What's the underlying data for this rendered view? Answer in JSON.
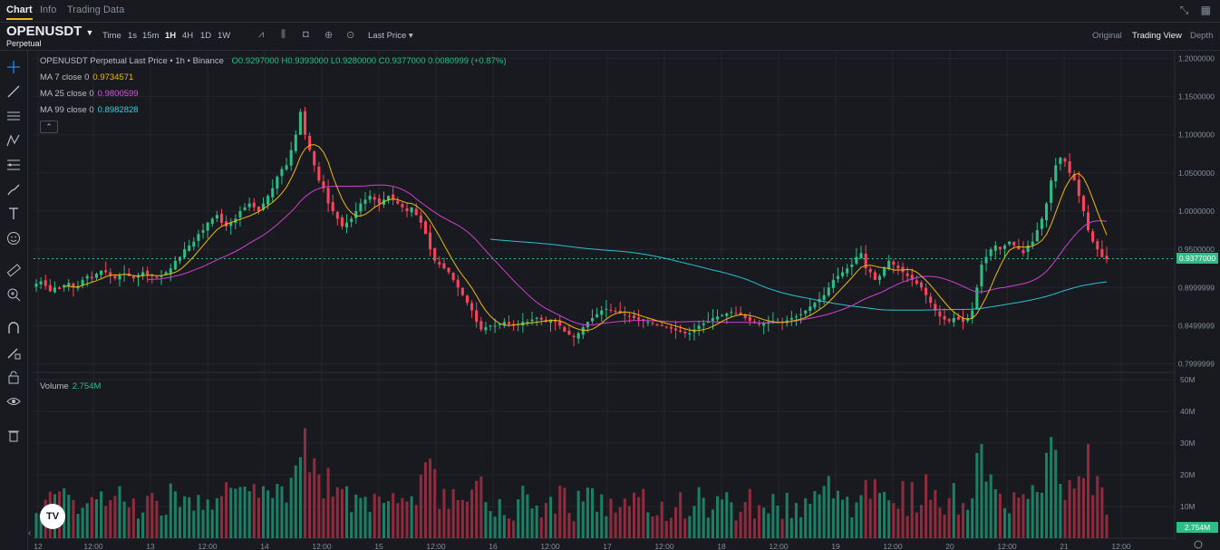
{
  "tabs": [
    {
      "label": "Chart",
      "active": true
    },
    {
      "label": "Info",
      "active": false
    },
    {
      "label": "Trading Data",
      "active": false
    }
  ],
  "symbol": {
    "name": "OPENUSDT",
    "sub": "Perpetual"
  },
  "intervals": [
    {
      "label": "Time",
      "active": false
    },
    {
      "label": "1s",
      "active": false
    },
    {
      "label": "15m",
      "active": false
    },
    {
      "label": "1H",
      "active": true
    },
    {
      "label": "4H",
      "active": false
    },
    {
      "label": "1D",
      "active": false
    },
    {
      "label": "1W",
      "active": false
    }
  ],
  "price_type": "Last Price",
  "views": [
    {
      "label": "Original",
      "active": false
    },
    {
      "label": "Trading View",
      "active": true
    },
    {
      "label": "Depth",
      "active": false
    }
  ],
  "legend": {
    "title": "OPENUSDT Perpetual Last Price • 1h • Binance",
    "ohlc": "O0.9297000  H0.9393000  L0.9280000  C0.9377000  0.0080999 (+0.87%)",
    "ma7_label": "MA 7 close 0",
    "ma7_value": "0.9734571",
    "ma25_label": "MA 25 close 0",
    "ma25_value": "0.9800599",
    "ma99_label": "MA 99 close 0",
    "ma99_value": "0.8982828",
    "volume_label": "Volume",
    "volume_value": "2.754M"
  },
  "colors": {
    "up": "#2ebd85",
    "down": "#f6465d",
    "ma7": "#f0b90b",
    "ma25": "#d040d0",
    "ma99": "#2bc0d0",
    "vol_up": "#1a7f63",
    "vol_down": "#8f2b3c"
  },
  "price_axis": [
    "1.2000000",
    "1.1500000",
    "1.1000000",
    "1.0500000",
    "1.0000000",
    "0.9500000",
    "0.8999999",
    "0.8499999",
    "0.7999999"
  ],
  "current_price": "0.9377000",
  "volume_axis": [
    "50M",
    "40M",
    "30M",
    "20M",
    "10M"
  ],
  "current_volume": "2.754M",
  "time_axis": [
    "12",
    "12:00",
    "13",
    "12:00",
    "14",
    "12:00",
    "15",
    "12:00",
    "16",
    "12:00",
    "17",
    "12:00",
    "18",
    "12:00",
    "19",
    "12:00",
    "20",
    "12:00",
    "21",
    "12:00"
  ],
  "chart_data": {
    "type": "candlestick",
    "interval": "1h",
    "ylim": [
      0.79,
      1.21
    ],
    "volume_ylim": [
      0,
      52
    ],
    "close_series": [
      0.905,
      0.908,
      0.902,
      0.895,
      0.9,
      0.898,
      0.903,
      0.906,
      0.9,
      0.902,
      0.91,
      0.915,
      0.912,
      0.918,
      0.922,
      0.92,
      0.915,
      0.912,
      0.916,
      0.918,
      0.915,
      0.912,
      0.916,
      0.92,
      0.917,
      0.915,
      0.913,
      0.915,
      0.92,
      0.925,
      0.935,
      0.94,
      0.95,
      0.955,
      0.96,
      0.97,
      0.975,
      0.985,
      0.99,
      0.995,
      0.985,
      0.98,
      0.985,
      0.99,
      1.0,
      1.005,
      1.01,
      1.005,
      1.0,
      1.01,
      1.02,
      1.03,
      1.045,
      1.055,
      1.06,
      1.08,
      1.1,
      1.13,
      1.1,
      1.08,
      1.06,
      1.04,
      1.03,
      1.01,
      1.0,
      0.99,
      0.98,
      0.985,
      0.99,
      1.0,
      1.01,
      1.015,
      1.02,
      1.015,
      1.01,
      1.015,
      1.02,
      1.015,
      1.01,
      1.005,
      1.0,
      1.005,
      0.995,
      0.985,
      0.97,
      0.95,
      0.935,
      0.93,
      0.925,
      0.92,
      0.91,
      0.9,
      0.89,
      0.88,
      0.87,
      0.855,
      0.845,
      0.848,
      0.85,
      0.85,
      0.852,
      0.855,
      0.852,
      0.85,
      0.852,
      0.855,
      0.855,
      0.858,
      0.86,
      0.858,
      0.855,
      0.858,
      0.855,
      0.85,
      0.842,
      0.838,
      0.835,
      0.84,
      0.848,
      0.855,
      0.86,
      0.865,
      0.87,
      0.872,
      0.87,
      0.868,
      0.866,
      0.864,
      0.862,
      0.86,
      0.858,
      0.856,
      0.855,
      0.853,
      0.851,
      0.85,
      0.848,
      0.846,
      0.844,
      0.842,
      0.84,
      0.84,
      0.845,
      0.85,
      0.853,
      0.856,
      0.86,
      0.862,
      0.864,
      0.866,
      0.868,
      0.866,
      0.864,
      0.86,
      0.856,
      0.854,
      0.852,
      0.853,
      0.855,
      0.856,
      0.855,
      0.855,
      0.857,
      0.86,
      0.862,
      0.865,
      0.87,
      0.875,
      0.88,
      0.885,
      0.89,
      0.9,
      0.91,
      0.915,
      0.92,
      0.925,
      0.93,
      0.94,
      0.945,
      0.925,
      0.92,
      0.91,
      0.915,
      0.925,
      0.935,
      0.93,
      0.925,
      0.92,
      0.915,
      0.91,
      0.905,
      0.9,
      0.89,
      0.88,
      0.87,
      0.862,
      0.858,
      0.856,
      0.86,
      0.858,
      0.855,
      0.86,
      0.87,
      0.9,
      0.93,
      0.94,
      0.95,
      0.955,
      0.95,
      0.955,
      0.96,
      0.955,
      0.95,
      0.945,
      0.955,
      0.96,
      0.975,
      0.99,
      1.01,
      1.04,
      1.06,
      1.07,
      1.065,
      1.05,
      1.04,
      1.02,
      1.0,
      0.975,
      0.96,
      0.95,
      0.94,
      0.937
    ]
  }
}
